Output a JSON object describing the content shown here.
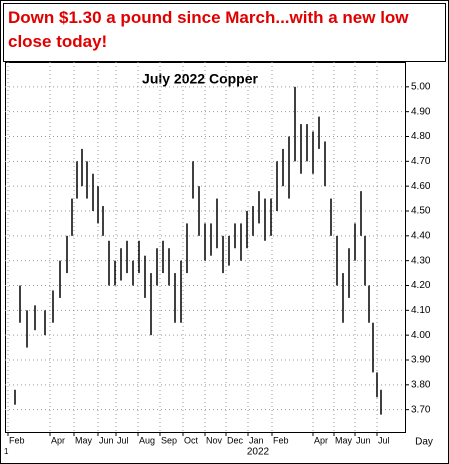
{
  "annotation": "Down $1.30 a pound since March...with a new low close today!",
  "chart_data": {
    "type": "range",
    "title": "July 2022 Copper",
    "color": "#000000",
    "grid": true,
    "x": [
      10,
      15,
      22,
      30,
      40,
      48,
      55,
      62,
      67,
      72,
      77,
      82,
      88,
      93,
      98,
      104,
      110,
      116,
      122,
      128,
      134,
      140,
      146,
      152,
      158,
      164,
      170,
      176,
      182,
      188,
      194,
      200,
      206,
      212,
      218,
      224,
      230,
      236,
      242,
      248,
      254,
      260,
      266,
      272,
      278,
      284,
      290,
      296,
      302,
      308,
      314,
      320,
      326,
      332,
      338,
      344,
      350,
      356,
      360,
      364,
      368,
      372,
      376
    ],
    "low": [
      3.72,
      4.05,
      3.95,
      4.02,
      4.0,
      4.05,
      4.15,
      4.25,
      4.4,
      4.55,
      4.6,
      4.55,
      4.5,
      4.45,
      4.4,
      4.2,
      4.2,
      4.22,
      4.25,
      4.2,
      4.25,
      4.15,
      4.0,
      4.2,
      4.25,
      4.2,
      4.05,
      4.05,
      4.25,
      4.55,
      4.4,
      4.3,
      4.32,
      4.35,
      4.25,
      4.28,
      4.35,
      4.3,
      4.35,
      4.4,
      4.45,
      4.38,
      4.4,
      4.5,
      4.6,
      4.55,
      4.7,
      4.65,
      4.7,
      4.65,
      4.75,
      4.6,
      4.4,
      4.2,
      4.05,
      4.15,
      4.3,
      4.4,
      4.2,
      4.05,
      3.85,
      3.75,
      3.68
    ],
    "high": [
      3.78,
      4.2,
      4.1,
      4.12,
      4.1,
      4.18,
      4.3,
      4.4,
      4.55,
      4.7,
      4.75,
      4.7,
      4.65,
      4.6,
      4.52,
      4.38,
      4.3,
      4.35,
      4.38,
      4.3,
      4.38,
      4.32,
      4.25,
      4.35,
      4.38,
      4.35,
      4.25,
      4.3,
      4.45,
      4.7,
      4.6,
      4.45,
      4.45,
      4.55,
      4.4,
      4.4,
      4.45,
      4.45,
      4.5,
      4.52,
      4.58,
      4.55,
      4.55,
      4.7,
      4.75,
      4.8,
      5.0,
      4.85,
      4.85,
      4.82,
      4.88,
      4.78,
      4.55,
      4.4,
      4.25,
      4.35,
      4.45,
      4.58,
      4.4,
      4.2,
      4.05,
      3.85,
      3.78
    ],
    "xlim": [
      0,
      400
    ],
    "ylim": [
      3.61,
      5.1
    ],
    "xticks": [
      {
        "value": 3,
        "label": "Feb"
      },
      {
        "value": 45,
        "label": "Apr"
      },
      {
        "value": 69,
        "label": "May"
      },
      {
        "value": 93,
        "label": "Jun"
      },
      {
        "value": 111,
        "label": "Jul"
      },
      {
        "value": 133,
        "label": "Aug"
      },
      {
        "value": 155,
        "label": "Sep"
      },
      {
        "value": 178,
        "label": "Oct"
      },
      {
        "value": 200,
        "label": "Nov"
      },
      {
        "value": 221,
        "label": "Dec"
      },
      {
        "value": 243,
        "label": "Jan"
      },
      {
        "value": 267,
        "label": "Feb"
      },
      {
        "value": 308,
        "label": "Apr"
      },
      {
        "value": 329,
        "label": "May"
      },
      {
        "value": 350,
        "label": "Jun"
      },
      {
        "value": 372,
        "label": "Jul"
      }
    ],
    "yticks": [
      {
        "value": 3.7,
        "label": "3.70"
      },
      {
        "value": 3.8,
        "label": "3.80"
      },
      {
        "value": 3.9,
        "label": "3.90"
      },
      {
        "value": 4.0,
        "label": "4.00"
      },
      {
        "value": 4.1,
        "label": "4.10"
      },
      {
        "value": 4.2,
        "label": "4.20"
      },
      {
        "value": 4.3,
        "label": "4.30"
      },
      {
        "value": 4.4,
        "label": "4.40"
      },
      {
        "value": 4.5,
        "label": "4.50"
      },
      {
        "value": 4.6,
        "label": "4.60"
      },
      {
        "value": 4.7,
        "label": "4.70"
      },
      {
        "value": 4.8,
        "label": "4.80"
      },
      {
        "value": 4.9,
        "label": "4.90"
      },
      {
        "value": 5.0,
        "label": "5.00"
      }
    ],
    "year_label": "2022",
    "x_axis_label": "Day",
    "corner_label": "1"
  }
}
